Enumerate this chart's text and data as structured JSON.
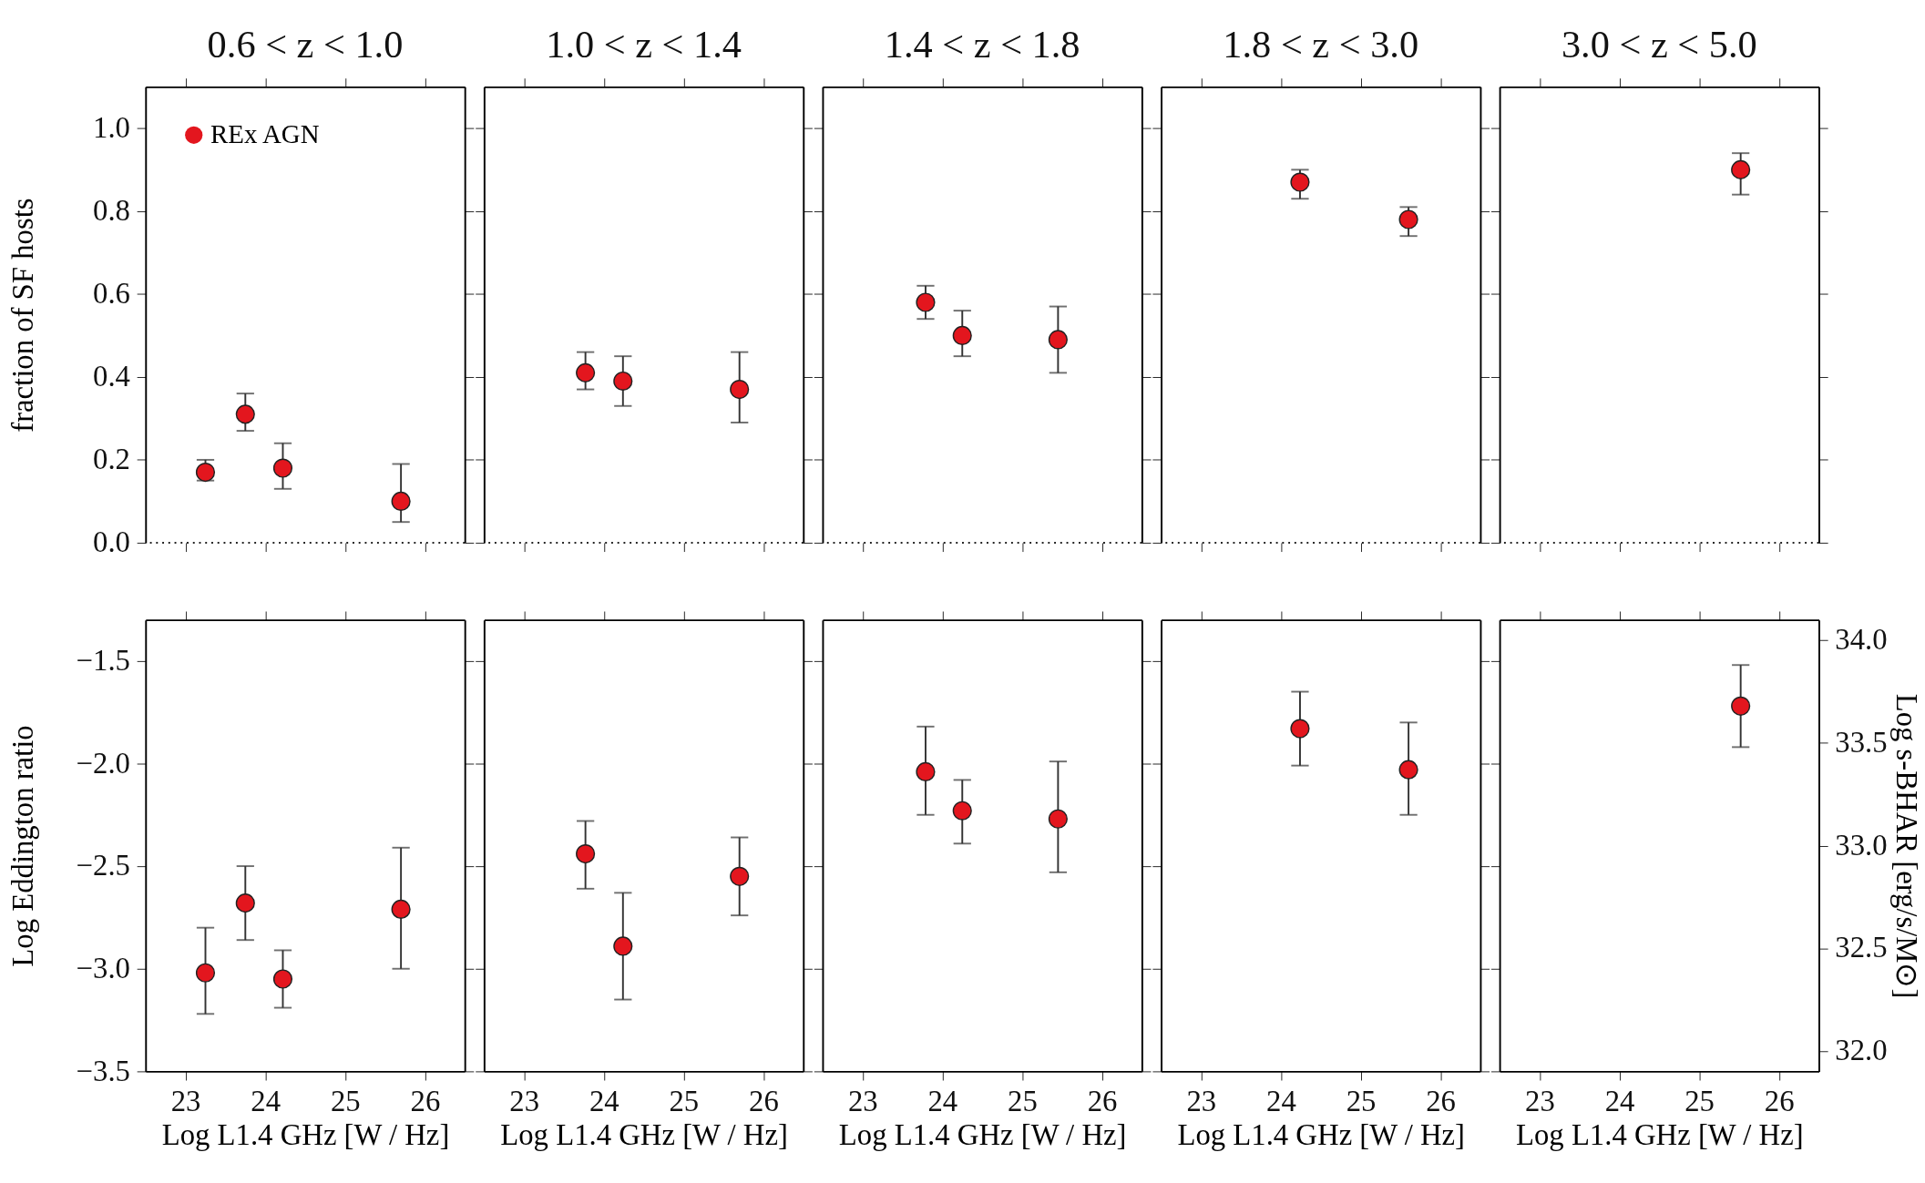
{
  "chart_data": [
    {
      "type": "scatter",
      "title": "0.6 < z < 1.0",
      "ylabel": "fraction of SF hosts",
      "x": [
        23.25,
        23.75,
        24.22,
        25.7
      ],
      "series": [
        {
          "name": "REx AGN",
          "color": "#e3161e",
          "values": [
            0.17,
            0.31,
            0.18,
            0.1
          ],
          "errors": [
            [
              0.15,
              0.2
            ],
            [
              0.27,
              0.36
            ],
            [
              0.13,
              0.24
            ],
            [
              0.05,
              0.19
            ]
          ]
        }
      ],
      "xlim": [
        22.5,
        26.5
      ],
      "xticks": [
        23,
        24,
        25,
        26
      ],
      "ylim": [
        0,
        1.1
      ],
      "yticks": [
        {
          "value": 0,
          "label": "0.0"
        },
        0.2,
        0.4,
        0.6,
        0.8,
        {
          "value": 1,
          "label": "1.0"
        }
      ],
      "tick_labels": "y",
      "legend": "top left",
      "marker": "circle",
      "ref_lines": [
        {
          "axis": "y",
          "value": 0,
          "line_style": "dotted"
        }
      ]
    },
    {
      "type": "scatter",
      "title": "1.0 < z < 1.4",
      "x": [
        23.77,
        24.24,
        25.7
      ],
      "series": [
        {
          "color": "#e3161e",
          "values": [
            0.41,
            0.39,
            0.37
          ],
          "errors": [
            [
              0.37,
              0.46
            ],
            [
              0.33,
              0.45
            ],
            [
              0.29,
              0.46
            ]
          ]
        }
      ],
      "xlim": [
        22.5,
        26.5
      ],
      "xticks": [
        23,
        24,
        25,
        26
      ],
      "ylim": [
        0,
        1.1
      ],
      "yticks": [
        0,
        0.2,
        0.4,
        0.6,
        0.8,
        1
      ],
      "tick_labels": false,
      "marker": "circle",
      "ref_lines": [
        {
          "axis": "y",
          "value": 0,
          "line_style": "dotted"
        }
      ]
    },
    {
      "type": "scatter",
      "title": "1.4 < z < 1.8",
      "x": [
        23.79,
        24.25,
        25.45
      ],
      "series": [
        {
          "color": "#e3161e",
          "values": [
            0.58,
            0.5,
            0.49
          ],
          "errors": [
            [
              0.54,
              0.62
            ],
            [
              0.45,
              0.56
            ],
            [
              0.41,
              0.57
            ]
          ]
        }
      ],
      "xlim": [
        22.5,
        26.5
      ],
      "xticks": [
        23,
        24,
        25,
        26
      ],
      "ylim": [
        0,
        1.1
      ],
      "yticks": [
        0,
        0.2,
        0.4,
        0.6,
        0.8,
        1
      ],
      "tick_labels": false,
      "marker": "circle",
      "ref_lines": [
        {
          "axis": "y",
          "value": 0,
          "line_style": "dotted"
        }
      ]
    },
    {
      "type": "scatter",
      "title": "1.8 < z < 3.0",
      "x": [
        24.24,
        25.6
      ],
      "series": [
        {
          "color": "#e3161e",
          "values": [
            0.87,
            0.78
          ],
          "errors": [
            [
              0.83,
              0.9
            ],
            [
              0.74,
              0.81
            ]
          ]
        }
      ],
      "xlim": [
        22.5,
        26.5
      ],
      "xticks": [
        23,
        24,
        25,
        26
      ],
      "ylim": [
        0,
        1.1
      ],
      "yticks": [
        0,
        0.2,
        0.4,
        0.6,
        0.8,
        1
      ],
      "tick_labels": false,
      "marker": "circle",
      "ref_lines": [
        {
          "axis": "y",
          "value": 0,
          "line_style": "dotted"
        }
      ]
    },
    {
      "type": "scatter",
      "title": "3.0 < z < 5.0",
      "x": [
        25.52
      ],
      "series": [
        {
          "color": "#e3161e",
          "values": [
            0.9
          ],
          "errors": [
            [
              0.84,
              0.94
            ]
          ]
        }
      ],
      "xlim": [
        22.5,
        26.5
      ],
      "xticks": [
        23,
        24,
        25,
        26
      ],
      "ylim": [
        0,
        1.1
      ],
      "yticks": [
        0,
        0.2,
        0.4,
        0.6,
        0.8,
        1
      ],
      "tick_labels": false,
      "marker": "circle",
      "ref_lines": [
        {
          "axis": "y",
          "value": 0,
          "line_style": "dotted"
        }
      ]
    },
    {
      "type": "scatter",
      "xlabel": "Log L1.4 GHz [W / Hz]",
      "ylabel": "Log Eddington ratio",
      "x": [
        23.25,
        23.75,
        24.22,
        25.7
      ],
      "series": [
        {
          "color": "#e3161e",
          "values": [
            -3.02,
            -2.68,
            -3.05,
            -2.71
          ],
          "errors": [
            [
              -3.22,
              -2.8
            ],
            [
              -2.86,
              -2.5
            ],
            [
              -3.19,
              -2.91
            ],
            [
              -3.0,
              -2.41
            ]
          ]
        }
      ],
      "xlim": [
        22.5,
        26.5
      ],
      "xticks": [
        23,
        24,
        25,
        26
      ],
      "ylim": [
        -3.5,
        -1.3
      ],
      "yticks": [
        {
          "value": -3.5,
          "label": "−3.5"
        },
        {
          "value": -3,
          "label": "−3.0"
        },
        {
          "value": -2.5,
          "label": "−2.5"
        },
        {
          "value": -2,
          "label": "−2.0"
        },
        {
          "value": -1.5,
          "label": "−1.5"
        }
      ],
      "marker": "circle"
    },
    {
      "type": "scatter",
      "xlabel": "Log L1.4 GHz [W / Hz]",
      "x": [
        23.77,
        24.24,
        25.7
      ],
      "series": [
        {
          "color": "#e3161e",
          "values": [
            -2.44,
            -2.89,
            -2.55
          ],
          "errors": [
            [
              -2.61,
              -2.28
            ],
            [
              -3.15,
              -2.63
            ],
            [
              -2.74,
              -2.36
            ]
          ]
        }
      ],
      "xlim": [
        22.5,
        26.5
      ],
      "xticks": [
        23,
        24,
        25,
        26
      ],
      "ylim": [
        -3.5,
        -1.3
      ],
      "yticks": [
        -3.5,
        -3,
        -2.5,
        -2,
        -1.5
      ],
      "tick_labels": "x",
      "marker": "circle"
    },
    {
      "type": "scatter",
      "xlabel": "Log L1.4 GHz [W / Hz]",
      "x": [
        23.79,
        24.25,
        25.45
      ],
      "series": [
        {
          "color": "#e3161e",
          "values": [
            -2.04,
            -2.23,
            -2.27
          ],
          "errors": [
            [
              -2.25,
              -1.82
            ],
            [
              -2.39,
              -2.08
            ],
            [
              -2.53,
              -1.99
            ]
          ]
        }
      ],
      "xlim": [
        22.5,
        26.5
      ],
      "xticks": [
        23,
        24,
        25,
        26
      ],
      "ylim": [
        -3.5,
        -1.3
      ],
      "yticks": [
        -3.5,
        -3,
        -2.5,
        -2,
        -1.5
      ],
      "tick_labels": "x",
      "marker": "circle"
    },
    {
      "type": "scatter",
      "xlabel": "Log L1.4 GHz [W / Hz]",
      "x": [
        24.24,
        25.6
      ],
      "series": [
        {
          "color": "#e3161e",
          "values": [
            -1.83,
            -2.03
          ],
          "errors": [
            [
              -2.01,
              -1.65
            ],
            [
              -2.25,
              -1.8
            ]
          ]
        }
      ],
      "xlim": [
        22.5,
        26.5
      ],
      "xticks": [
        23,
        24,
        25,
        26
      ],
      "ylim": [
        -3.5,
        -1.3
      ],
      "yticks": [
        -3.5,
        -3,
        -2.5,
        -2,
        -1.5
      ],
      "tick_labels": "x",
      "marker": "circle"
    },
    {
      "type": "scatter",
      "xlabel": "Log L1.4 GHz [W / Hz]",
      "y2label": "Log s-BHAR [erg/s/M⊙]",
      "x": [
        25.52
      ],
      "series": [
        {
          "color": "#e3161e",
          "values": [
            -1.72
          ],
          "errors": [
            [
              -1.92,
              -1.52
            ]
          ]
        }
      ],
      "xlim": [
        22.5,
        26.5
      ],
      "xticks": [
        23,
        24,
        25,
        26
      ],
      "ylim": [
        -3.5,
        -1.3
      ],
      "yticks": [
        -3.5,
        -3,
        -2.5,
        -2,
        -1.5
      ],
      "y2lim": [
        31.9,
        34.1
      ],
      "y2ticks": [
        {
          "value": 32,
          "label": "32.0"
        },
        {
          "value": 32.5,
          "label": "32.5"
        },
        {
          "value": 33,
          "label": "33.0"
        },
        {
          "value": 33.5,
          "label": "33.5"
        },
        {
          "value": 34,
          "label": "34.0"
        }
      ],
      "tick_labels": "x",
      "marker": "circle"
    }
  ]
}
